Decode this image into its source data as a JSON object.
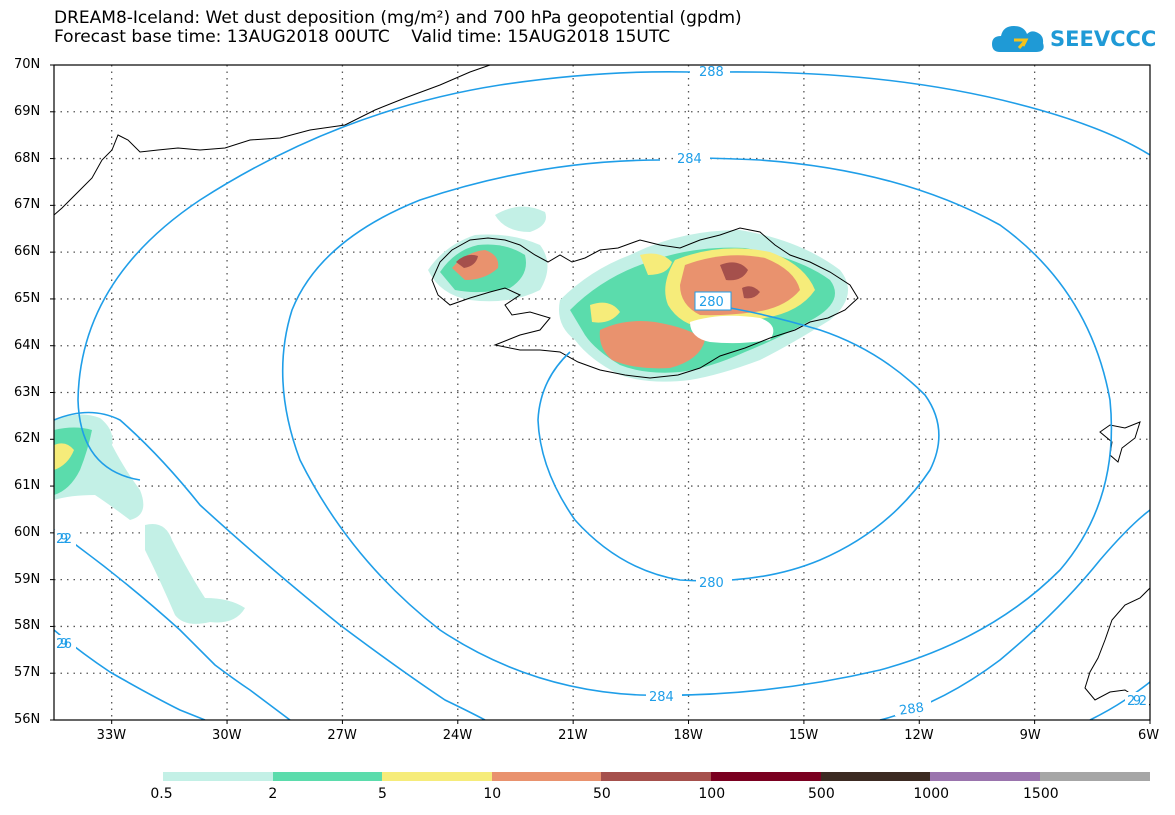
{
  "header": {
    "title_line1": "DREAM8-Iceland: Wet dust deposition (mg/m²) and 700 hPa geopotential (gpdm)",
    "title_line2": "Forecast base time: 13AUG2018 00UTC    Valid time: 15AUG2018 15UTC"
  },
  "logo": {
    "text": "SEEVCCC",
    "icon": "cloud-icon",
    "color": "#1f9ad6"
  },
  "map": {
    "lat_labels": [
      "70N",
      "69N",
      "68N",
      "67N",
      "66N",
      "65N",
      "64N",
      "63N",
      "62N",
      "61N",
      "60N",
      "59N",
      "58N",
      "57N",
      "56N"
    ],
    "lon_labels": [
      "33W",
      "30W",
      "27W",
      "24W",
      "21W",
      "18W",
      "15W",
      "12W",
      "9W",
      "6W"
    ],
    "contour_labels": [
      "288",
      "284",
      "280",
      "280",
      "284",
      "288",
      "292",
      "296",
      "292"
    ],
    "contour_color": "#1f9ee8"
  },
  "colorbar": {
    "labels": [
      "0.5",
      "2",
      "5",
      "10",
      "50",
      "100",
      "500",
      "1000",
      "1500"
    ],
    "colors": [
      "#c3f0e6",
      "#5bdcac",
      "#f6ec7a",
      "#e9926e",
      "#a5504c",
      "#7a0020",
      "#3c2a22",
      "#9a74ad",
      "#a6a6a6"
    ]
  }
}
